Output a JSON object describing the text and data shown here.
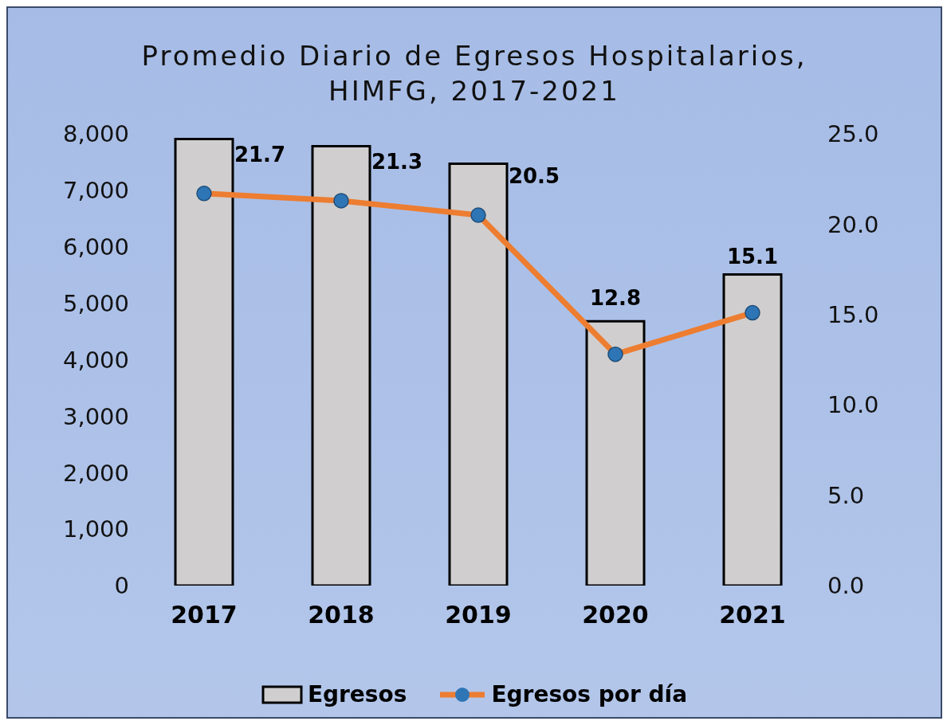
{
  "chart_data": {
    "type": "bar",
    "title": "Promedio Diario de Egresos Hospitalarios,\nHIMFG, 2017-2021",
    "categories": [
      "2017",
      "2018",
      "2019",
      "2020",
      "2021"
    ],
    "series": [
      {
        "name": "Egresos",
        "color": "#d0cece",
        "values": [
          7910,
          7780,
          7470,
          4680,
          5510
        ]
      },
      {
        "name": "Egresos por día",
        "type": "line",
        "axis": "y2",
        "color": "#ed7d31",
        "marker": "circle",
        "values": [
          21.7,
          21.3,
          20.5,
          12.8,
          15.1
        ],
        "value_labels": [
          "21.7",
          "21.3",
          "20.5",
          "12.8",
          "15.1"
        ]
      }
    ],
    "ylim": [
      0,
      8000
    ],
    "yticks": [
      {
        "value": 0,
        "label": "0"
      },
      {
        "value": 1000,
        "label": "1,000"
      },
      {
        "value": 2000,
        "label": "2,000"
      },
      {
        "value": 3000,
        "label": "3,000"
      },
      {
        "value": 4000,
        "label": "4,000"
      },
      {
        "value": 5000,
        "label": "5,000"
      },
      {
        "value": 6000,
        "label": "6,000"
      },
      {
        "value": 7000,
        "label": "7,000"
      },
      {
        "value": 8000,
        "label": "8,000"
      }
    ],
    "y2lim": [
      0,
      25
    ],
    "y2ticks": [
      {
        "value": 0,
        "label": "0.0"
      },
      {
        "value": 5,
        "label": "5.0"
      },
      {
        "value": 10,
        "label": "10.0"
      },
      {
        "value": 15,
        "label": "15.0"
      },
      {
        "value": 20,
        "label": "20.0"
      },
      {
        "value": 25,
        "label": "25.0"
      }
    ],
    "grid": false,
    "legend": "bottom"
  }
}
